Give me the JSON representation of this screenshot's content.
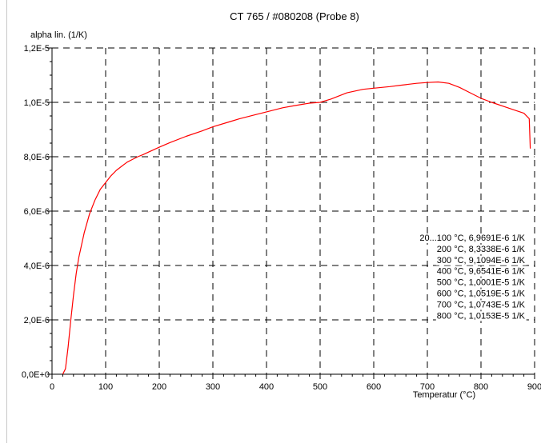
{
  "chart_data": {
    "type": "line",
    "title": "CT 765 / #080208 (Probe 8)",
    "xlabel": "Temperatur (°C)",
    "ylabel": "alpha lin. (1/K)",
    "xlim": [
      0,
      900
    ],
    "ylim": [
      0,
      1.2e-05
    ],
    "x_ticks": [
      0,
      100,
      200,
      300,
      400,
      500,
      600,
      700,
      800,
      900
    ],
    "x_tick_labels": [
      "0",
      "100",
      "200",
      "300",
      "400",
      "500",
      "600",
      "700",
      "800",
      "900"
    ],
    "y_ticks": [
      0,
      2e-06,
      4e-06,
      6e-06,
      8e-06,
      1e-05,
      1.2e-05
    ],
    "y_tick_labels": [
      "0,0E+0",
      "2,0E-6",
      "4,0E-6",
      "6,0E-6",
      "8,0E-6",
      "1,0E-5",
      "1,2E-5"
    ],
    "grid": true,
    "line_color": "#ff0000",
    "series": [
      {
        "x": [
          20,
          25,
          30,
          35,
          40,
          45,
          50,
          60,
          70,
          80,
          90,
          100,
          110,
          120,
          130,
          140,
          150,
          160,
          170,
          180,
          200,
          220,
          250,
          280,
          300,
          330,
          350,
          380,
          400,
          430,
          450,
          480,
          500,
          520,
          550,
          580,
          600,
          630,
          650,
          680,
          700,
          720,
          740,
          760,
          780,
          800,
          820,
          850,
          880,
          890,
          892
        ],
        "values": [
          0,
          2e-07,
          1e-06,
          2e-06,
          2.9e-06,
          3.7e-06,
          4.3e-06,
          5.2e-06,
          5.9e-06,
          6.4e-06,
          6.8e-06,
          7.05e-06,
          7.3e-06,
          7.5e-06,
          7.65e-06,
          7.8e-06,
          7.9e-06,
          8e-06,
          8.08e-06,
          8.17e-06,
          8.35e-06,
          8.52e-06,
          8.75e-06,
          8.95e-06,
          9.1e-06,
          9.28e-06,
          9.4e-06,
          9.55e-06,
          9.65e-06,
          9.8e-06,
          9.87e-06,
          9.97e-06,
          1e-05,
          1.012e-05,
          1.035e-05,
          1.048e-05,
          1.052e-05,
          1.058e-05,
          1.063e-05,
          1.07e-05,
          1.073e-05,
          1.075e-05,
          1.07e-05,
          1.055e-05,
          1.035e-05,
          1.015e-05,
          1e-05,
          9.8e-06,
          9.6e-06,
          9.4e-06,
          8.3e-06
        ]
      }
    ],
    "annotations": [
      "20...100 °C, 6,9691E-6 1/K",
      "200 °C, 8,3338E-6 1/K",
      "300 °C, 9,1094E-6 1/K",
      "400 °C, 9,6541E-6 1/K",
      "500 °C, 1,0001E-5 1/K",
      "600 °C, 1,0519E-5 1/K",
      "700 °C, 1,0743E-5 1/K",
      "800 °C, 1,0153E-5 1/K"
    ]
  }
}
